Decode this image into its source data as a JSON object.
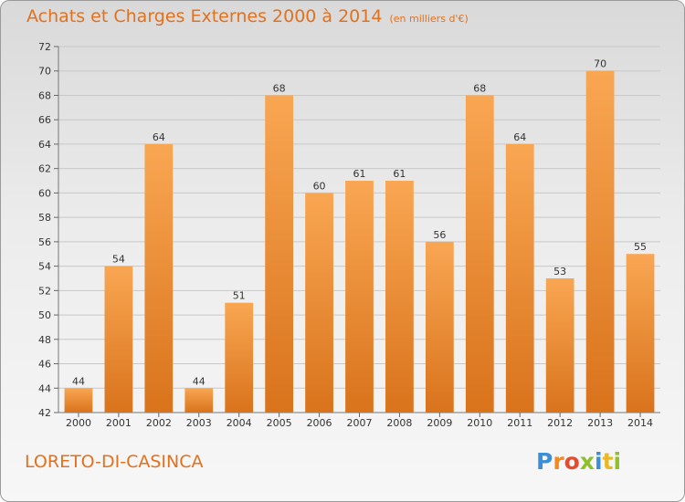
{
  "title": "Achats et Charges Externes 2000 à 2014",
  "subtitle": "(en milliers d'€)",
  "commune": "LORETO-DI-CASINCA",
  "brand": {
    "letters": [
      "P",
      "r",
      "o",
      "x",
      "i",
      "t",
      "i"
    ],
    "colors": [
      "#3a8fd6",
      "#f08a1c",
      "#e54b2f",
      "#8fbf2a",
      "#3a8fd6",
      "#e9b822",
      "#8fbf2a"
    ]
  },
  "colors": {
    "bar_light": "#f9a652",
    "bar_dark": "#d9731c",
    "accent": "#e2711d",
    "grid": "#c8c8c8"
  },
  "chart_data": {
    "type": "bar",
    "title": "Achats et Charges Externes 2000 à 2014",
    "subtitle": "(en milliers d'€)",
    "categories": [
      "2000",
      "2001",
      "2002",
      "2003",
      "2004",
      "2005",
      "2006",
      "2007",
      "2008",
      "2009",
      "2010",
      "2011",
      "2012",
      "2013",
      "2014"
    ],
    "values": [
      44,
      54,
      64,
      44,
      51,
      68,
      60,
      61,
      61,
      56,
      68,
      64,
      53,
      70,
      55
    ],
    "ylim": [
      42,
      72
    ],
    "yticks": [
      42,
      44,
      46,
      48,
      50,
      52,
      54,
      56,
      58,
      60,
      62,
      64,
      66,
      68,
      70,
      72
    ],
    "grid": true
  }
}
